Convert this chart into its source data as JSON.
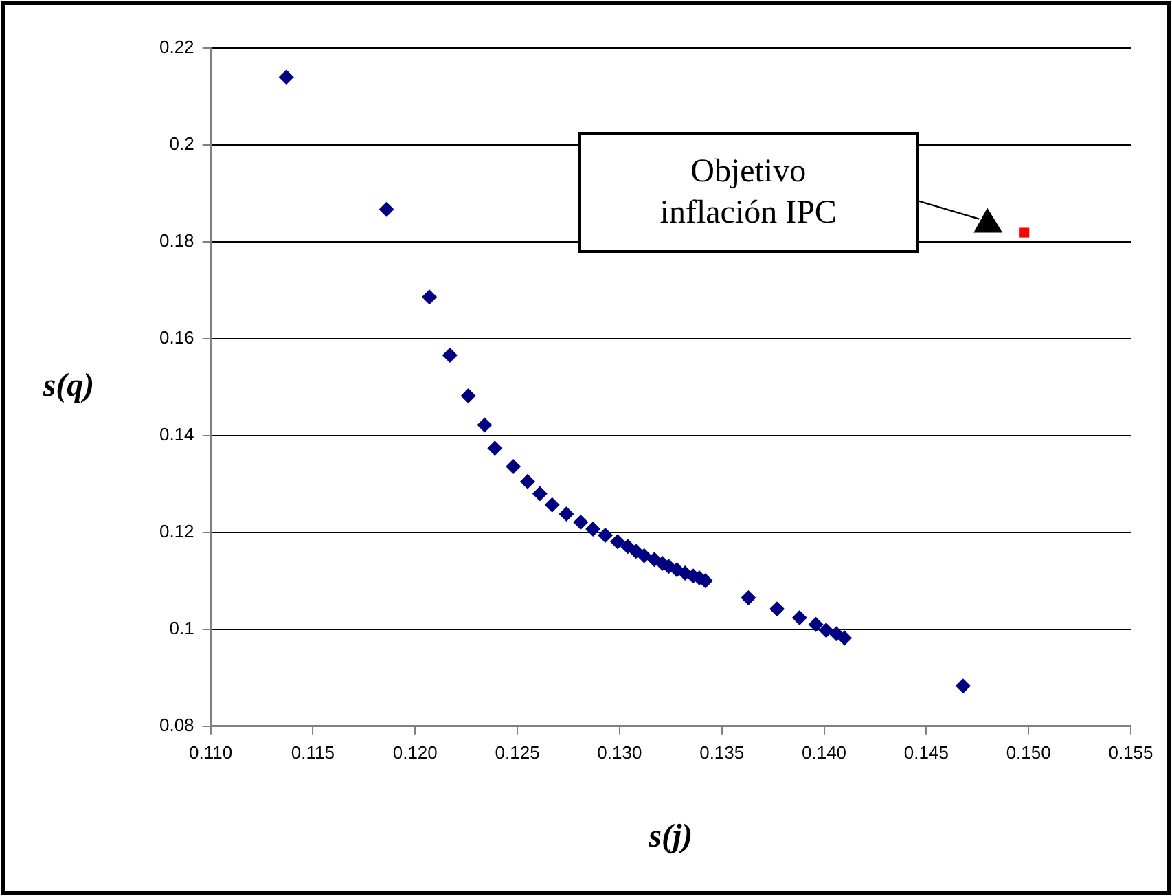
{
  "chart_data": {
    "type": "scatter",
    "xlabel": "s(j)",
    "ylabel": "s(q)",
    "xlim": [
      0.11,
      0.155
    ],
    "xticks": [
      {
        "value": 0.11,
        "label": "0.110"
      },
      {
        "value": 0.115,
        "label": "0.115"
      },
      {
        "value": 0.12,
        "label": "0.120"
      },
      {
        "value": 0.125,
        "label": "0.125"
      },
      {
        "value": 0.13,
        "label": "0.130"
      },
      {
        "value": 0.135,
        "label": "0.135"
      },
      {
        "value": 0.14,
        "label": "0.140"
      },
      {
        "value": 0.145,
        "label": "0.145"
      },
      {
        "value": 0.15,
        "label": "0.150"
      },
      {
        "value": 0.155,
        "label": "0.155"
      }
    ],
    "ylim": [
      0.08,
      0.22
    ],
    "yticks": [
      0.08,
      0.1,
      0.12,
      0.14,
      0.16,
      0.18,
      0.2,
      0.22
    ],
    "grid": "y",
    "legend": false,
    "series": [
      {
        "color": "#000080",
        "marker": "diamond",
        "x": [
          0.1137,
          0.1186,
          0.1207,
          0.1217,
          0.1226,
          0.1234,
          0.1239,
          0.1248,
          0.1255,
          0.1261,
          0.1267,
          0.1274,
          0.1281,
          0.1287,
          0.1293,
          0.1299,
          0.1304,
          0.1308,
          0.1312,
          0.1317,
          0.1321,
          0.1324,
          0.1328,
          0.1332,
          0.1336,
          0.1339,
          0.1342,
          0.1363,
          0.1377,
          0.1388,
          0.1396,
          0.1401,
          0.1406,
          0.141,
          0.1468
        ],
        "values": [
          0.214,
          0.1867,
          0.1686,
          0.1566,
          0.1482,
          0.1422,
          0.1374,
          0.1336,
          0.1305,
          0.128,
          0.1257,
          0.1238,
          0.1221,
          0.1207,
          0.1194,
          0.1181,
          0.1171,
          0.1161,
          0.1152,
          0.1144,
          0.1136,
          0.113,
          0.1123,
          0.1116,
          0.111,
          0.1106,
          0.11,
          0.1065,
          0.1042,
          0.1024,
          0.101,
          0.0998,
          0.0991,
          0.0982,
          0.0883
        ]
      },
      {
        "color": "#ff0000",
        "marker": "square",
        "x": [
          0.1498
        ],
        "values": [
          0.1819
        ]
      }
    ],
    "annotations": [
      "Objetivo inflación IPC"
    ]
  }
}
